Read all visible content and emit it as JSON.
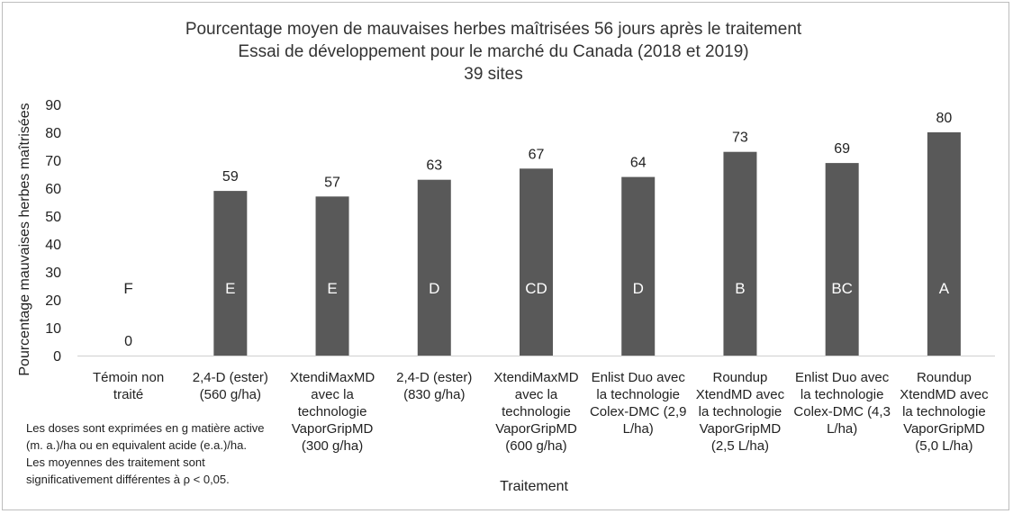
{
  "chart_data": {
    "type": "bar",
    "title": [
      "Pourcentage moyen de mauvaises herbes maîtrisées 56 jours après le traitement",
      "Essai de développement pour le marché du Canada (2018 et 2019)",
      "39 sites"
    ],
    "xlabel": "Traitement",
    "ylabel": "Pourcentage mauvaises herbes maîtrisées",
    "ylim": [
      0,
      90
    ],
    "yticks": [
      0,
      10,
      20,
      30,
      40,
      50,
      60,
      70,
      80,
      90
    ],
    "grid": false,
    "bar_color": "#595959",
    "categories": [
      [
        "Témoin non",
        "traité"
      ],
      [
        "2,4-D (ester)",
        "(560 g/ha)"
      ],
      [
        "XtendiMaxMD",
        "avec la",
        "technologie",
        "VaporGripMD",
        "(300 g/ha)"
      ],
      [
        "2,4-D (ester)",
        "(830 g/ha)"
      ],
      [
        "XtendiMaxMD",
        "avec la",
        "technologie",
        "VaporGripMD",
        "(600 g/ha)"
      ],
      [
        "Enlist Duo avec",
        "la technologie",
        "Colex-DMC (2,9",
        "L/ha)"
      ],
      [
        "Roundup",
        "XtendMD avec",
        "la technologie",
        "VaporGripMD",
        "(2,5 L/ha)"
      ],
      [
        "Enlist Duo avec",
        "la technologie",
        "Colex-DMC (4,3",
        "L/ha)"
      ],
      [
        "Roundup",
        "XtendMD avec",
        "la technologie",
        "VaporGripMD",
        "(5,0 L/ha)"
      ]
    ],
    "values": [
      0,
      59,
      57,
      63,
      67,
      64,
      73,
      69,
      80
    ],
    "groups": [
      "F",
      "E",
      "E",
      "D",
      "CD",
      "D",
      "B",
      "BC",
      "A"
    ]
  },
  "note": [
    "Les doses sont exprimées en g matière active",
    "(m. a.)/ha ou en equivalent acide (e.a.)/ha.",
    "Les moyennes des traitement sont",
    "significativement différentes à ρ < 0,05."
  ]
}
